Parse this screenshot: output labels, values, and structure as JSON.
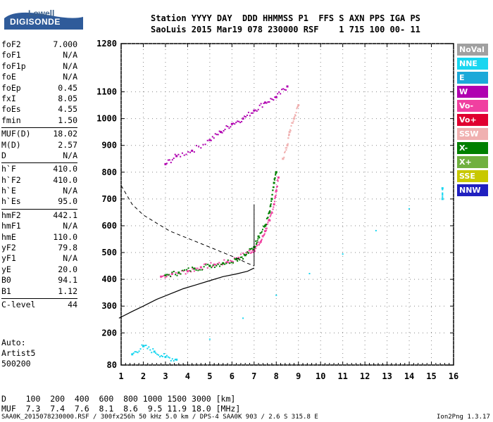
{
  "logo": {
    "lowell": "Lowell",
    "digisonde": "DIGISONDE"
  },
  "header": {
    "line1": "Station YYYY DAY  DDD HHMMSS P1  FFS S AXN PPS IGA PS",
    "line2": "SaoLuis 2015 Mar19 078 230000 RSF    1 715 100 00- 11"
  },
  "params": {
    "group1": [
      {
        "name": "foF2",
        "value": "7.000"
      },
      {
        "name": "foF1",
        "value": "N/A"
      },
      {
        "name": "foF1p",
        "value": "N/A"
      },
      {
        "name": "foE",
        "value": "N/A"
      },
      {
        "name": "foEp",
        "value": "0.45"
      },
      {
        "name": "fxI",
        "value": "8.05"
      },
      {
        "name": "foEs",
        "value": "4.55"
      },
      {
        "name": "fmin",
        "value": "1.50"
      }
    ],
    "group2": [
      {
        "name": "MUF(D)",
        "value": "18.02"
      },
      {
        "name": "M(D)",
        "value": "2.57"
      },
      {
        "name": "D",
        "value": "N/A"
      }
    ],
    "group3": [
      {
        "name": "h`F",
        "value": "410.0"
      },
      {
        "name": "h`F2",
        "value": "410.0"
      },
      {
        "name": "h`E",
        "value": "N/A"
      },
      {
        "name": "h`Es",
        "value": "95.0"
      }
    ],
    "group4": [
      {
        "name": "hmF2",
        "value": "442.1"
      },
      {
        "name": "hmF1",
        "value": "N/A"
      },
      {
        "name": "hmE",
        "value": "110.0"
      },
      {
        "name": "yF2",
        "value": "79.8"
      },
      {
        "name": "yF1",
        "value": "N/A"
      },
      {
        "name": "yE",
        "value": "20.0"
      },
      {
        "name": "B0",
        "value": "94.1"
      },
      {
        "name": "B1",
        "value": "1.12"
      }
    ],
    "group5": [
      {
        "name": "C-level",
        "value": "44"
      }
    ]
  },
  "auto": {
    "line1": "Auto:",
    "line2": "Artist5",
    "line3": "500200"
  },
  "legend": [
    {
      "label": "NoVal",
      "color": "#a0a0a0"
    },
    {
      "label": "NNE",
      "color": "#19d6f0"
    },
    {
      "label": "E",
      "color": "#1ca9d9"
    },
    {
      "label": "W",
      "color": "#b000b0"
    },
    {
      "label": "Vo-",
      "color": "#f040a0"
    },
    {
      "label": "Vo+",
      "color": "#e00030"
    },
    {
      "label": "SSW",
      "color": "#f0b0b0"
    },
    {
      "label": "X-",
      "color": "#008000"
    },
    {
      "label": "X+",
      "color": "#70b040"
    },
    {
      "label": "SSE",
      "color": "#c8c800"
    },
    {
      "label": "NNW",
      "color": "#2020c0"
    }
  ],
  "bottom": {
    "d_row": "D    100  200  400  600  800 1000 1500 3000 [km]",
    "muf_row": "MUF  7.3  7.4  7.6  8.1  8.6  9.5 11.9 18.0 [MHz]",
    "footer": "SAA0K_2015078230000.RSF / 300fx256h 50 kHz 5.0 km / DPS-4 SAA0K 903 / 2.6 S 315.8 E",
    "version": "Ion2Png 1.3.17"
  },
  "chart_data": {
    "type": "scatter",
    "xlabel": "",
    "ylabel": "",
    "xlim": [
      1,
      16
    ],
    "ylim": [
      80,
      1280
    ],
    "x_ticks": [
      "1",
      "2",
      "3",
      "4",
      "5",
      "6",
      "7",
      "8",
      "9",
      "10",
      "11",
      "12",
      "13",
      "14",
      "15",
      "16"
    ],
    "y_ticks": [
      "80",
      "200",
      "300",
      "400",
      "500",
      "600",
      "700",
      "800",
      "900",
      "1000",
      "1100",
      "1280"
    ],
    "y_tick_values": [
      80,
      200,
      300,
      400,
      500,
      600,
      700,
      800,
      900,
      1000,
      1100,
      1280
    ],
    "series": [
      {
        "name": "Vo-",
        "points": [
          [
            2.8,
            410
          ],
          [
            3.3,
            420
          ],
          [
            4,
            430
          ],
          [
            4.6,
            445
          ],
          [
            5.2,
            455
          ],
          [
            5.8,
            465
          ],
          [
            6.3,
            480
          ],
          [
            6.7,
            500
          ],
          [
            7.0,
            510
          ],
          [
            7.3,
            540
          ],
          [
            7.5,
            580
          ],
          [
            7.7,
            620
          ],
          [
            7.9,
            680
          ],
          [
            8.0,
            730
          ],
          [
            8.1,
            780
          ]
        ]
      },
      {
        "name": "X-",
        "points": [
          [
            3.0,
            415
          ],
          [
            3.6,
            425
          ],
          [
            4.3,
            440
          ],
          [
            5.0,
            450
          ],
          [
            5.6,
            460
          ],
          [
            6.2,
            475
          ],
          [
            6.6,
            490
          ],
          [
            7.0,
            520
          ],
          [
            7.2,
            560
          ],
          [
            7.5,
            600
          ],
          [
            7.7,
            650
          ],
          [
            7.8,
            700
          ],
          [
            7.9,
            760
          ],
          [
            8.0,
            800
          ]
        ]
      },
      {
        "name": "W",
        "points": [
          [
            3.0,
            830
          ],
          [
            3.5,
            860
          ],
          [
            4.2,
            880
          ],
          [
            5.0,
            920
          ],
          [
            5.5,
            950
          ],
          [
            6.0,
            980
          ],
          [
            6.5,
            1000
          ],
          [
            7.0,
            1030
          ],
          [
            7.5,
            1060
          ],
          [
            8.0,
            1080
          ],
          [
            8.5,
            1120
          ]
        ]
      },
      {
        "name": "SSW",
        "points": [
          [
            8.3,
            850
          ],
          [
            8.5,
            900
          ],
          [
            8.6,
            950
          ],
          [
            8.8,
            1000
          ],
          [
            9.0,
            1050
          ]
        ]
      },
      {
        "name": "NNE",
        "points": [
          [
            1.5,
            120
          ],
          [
            2.0,
            150
          ],
          [
            2.5,
            130
          ],
          [
            3.0,
            110
          ],
          [
            3.5,
            100
          ],
          [
            15.5,
            740
          ],
          [
            15.5,
            700
          ]
        ]
      }
    ],
    "profile_x": [
      0.9,
      1.5,
      2.0,
      2.6,
      3.2,
      3.8,
      4.4,
      5.0,
      5.6,
      6.2,
      6.7,
      7.0
    ],
    "profile_y": [
      255,
      280,
      300,
      325,
      345,
      365,
      380,
      395,
      410,
      420,
      430,
      442
    ],
    "dashed_x": [
      1.0,
      1.5,
      2.0,
      2.6,
      3.2,
      3.8,
      4.4,
      5.0,
      5.6,
      6.2,
      6.7,
      7.0
    ],
    "dashed_y": [
      750,
      680,
      640,
      610,
      580,
      560,
      540,
      520,
      500,
      480,
      460,
      450
    ]
  }
}
